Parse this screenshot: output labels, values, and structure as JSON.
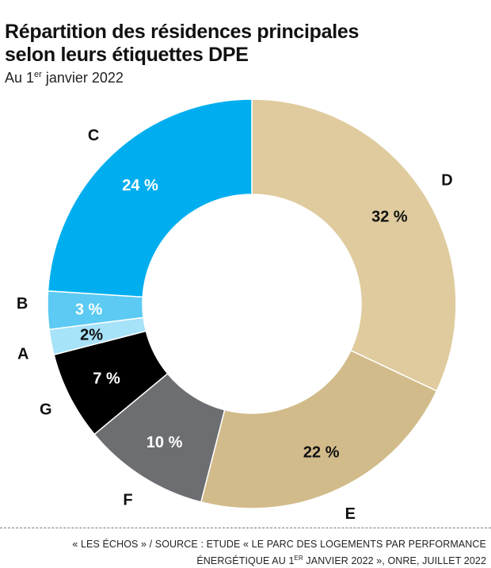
{
  "header": {
    "title_line1": "Répartition des résidences principales",
    "title_line2": "selon leurs étiquettes DPE",
    "subtitle_pre": "Au 1",
    "subtitle_sup": "er",
    "subtitle_post": " janvier 2022"
  },
  "footer": {
    "source_line1": "« LES ÉCHOS » / SOURCE : ETUDE « LE PARC DES LOGEMENTS PAR PERFORMANCE",
    "source_line2_pre": "ÉNERGÉTIQUE AU 1",
    "source_line2_sup": "ER",
    "source_line2_post": " JANVIER 2022 », ONRE, JUILLET 2022"
  },
  "chart_data": {
    "type": "pie",
    "donut": true,
    "title": "Répartition des résidences principales selon leurs étiquettes DPE",
    "subtitle": "Au 1er janvier 2022",
    "slices": [
      {
        "category": "D",
        "value": 32,
        "value_label": "32 %",
        "color": "#dfcb9e",
        "text_color": "#111111"
      },
      {
        "category": "E",
        "value": 22,
        "value_label": "22 %",
        "color": "#d2bb8a",
        "text_color": "#111111"
      },
      {
        "category": "F",
        "value": 10,
        "value_label": "10 %",
        "color": "#6d6e71",
        "text_color": "#ffffff"
      },
      {
        "category": "G",
        "value": 7,
        "value_label": "7 %",
        "color": "#000000",
        "text_color": "#ffffff"
      },
      {
        "category": "A",
        "value": 2,
        "value_label": "2%",
        "color": "#a6e2f8",
        "text_color": "#111111"
      },
      {
        "category": "B",
        "value": 3,
        "value_label": "3 %",
        "color": "#5ccaf2",
        "text_color": "#ffffff"
      },
      {
        "category": "C",
        "value": 24,
        "value_label": "24 %",
        "color": "#00aeef",
        "text_color": "#ffffff"
      }
    ]
  }
}
